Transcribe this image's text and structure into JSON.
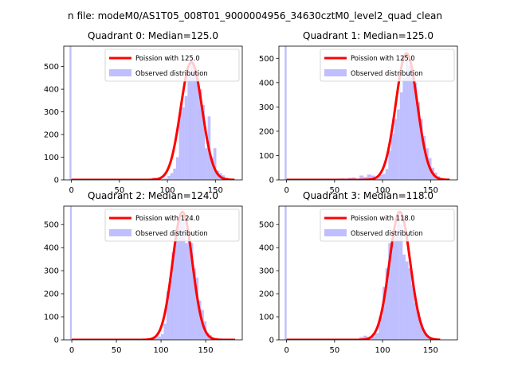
{
  "figure": {
    "suptitle": "n file: modeM0/AS1T05_008T01_9000004956_34630cztM0_level2_quad_clean"
  },
  "chart_data": [
    {
      "type": "histogram+line",
      "title": "Quadrant 0: Median=125.0",
      "median": 125.0,
      "xlim": [
        -8,
        178
      ],
      "ylim": [
        0,
        590
      ],
      "xticks": [
        0,
        50,
        100,
        150
      ],
      "yticks": [
        0,
        100,
        200,
        300,
        400,
        500
      ],
      "legend": {
        "position": "top-right",
        "entries": [
          "Poission with 125.0",
          "Observed distribution"
        ]
      },
      "series": [
        {
          "name": "Poission with 125.0",
          "kind": "line",
          "color": "#ff0000",
          "mean": 125.0,
          "peak": 520,
          "x_range": [
            0,
            170
          ]
        },
        {
          "name": "Observed distribution",
          "kind": "histogram",
          "color": "#8080ff",
          "bins": [
            [
              -2,
              0,
              590
            ],
            [
              0,
              4,
              2
            ],
            [
              4,
              8,
              1
            ],
            [
              8,
              12,
              1
            ],
            [
              12,
              16,
              1
            ],
            [
              16,
              20,
              1
            ],
            [
              20,
              24,
              1
            ],
            [
              24,
              28,
              1
            ],
            [
              28,
              32,
              1
            ],
            [
              32,
              36,
              1
            ],
            [
              36,
              40,
              1
            ],
            [
              40,
              44,
              1
            ],
            [
              44,
              48,
              1
            ],
            [
              48,
              52,
              1
            ],
            [
              52,
              56,
              1
            ],
            [
              56,
              60,
              1
            ],
            [
              60,
              64,
              1
            ],
            [
              64,
              68,
              1
            ],
            [
              68,
              72,
              1
            ],
            [
              72,
              76,
              1
            ],
            [
              76,
              80,
              2
            ],
            [
              80,
              84,
              3
            ],
            [
              84,
              88,
              10
            ],
            [
              88,
              92,
              5
            ],
            [
              92,
              96,
              4
            ],
            [
              96,
              100,
              6
            ],
            [
              100,
              103,
              18
            ],
            [
              103,
              106,
              30
            ],
            [
              106,
              109,
              50
            ],
            [
              109,
              112,
              100
            ],
            [
              112,
              115,
              300
            ],
            [
              115,
              118,
              320
            ],
            [
              118,
              121,
              370
            ],
            [
              121,
              124,
              470
            ],
            [
              124,
              127,
              520
            ],
            [
              127,
              130,
              480
            ],
            [
              130,
              133,
              470
            ],
            [
              133,
              136,
              400
            ],
            [
              136,
              139,
              330
            ],
            [
              139,
              142,
              140
            ],
            [
              142,
              145,
              280
            ],
            [
              145,
              148,
              100
            ],
            [
              148,
              151,
              140
            ],
            [
              151,
              154,
              40
            ],
            [
              154,
              157,
              30
            ],
            [
              157,
              160,
              20
            ],
            [
              160,
              163,
              10
            ],
            [
              163,
              166,
              5
            ],
            [
              166,
              170,
              2
            ]
          ]
        }
      ]
    },
    {
      "type": "histogram+line",
      "title": "Quadrant 1: Median=125.0",
      "median": 125.0,
      "xlim": [
        -8,
        178
      ],
      "ylim": [
        0,
        550
      ],
      "xticks": [
        0,
        50,
        100,
        150
      ],
      "yticks": [
        0,
        100,
        200,
        300,
        400,
        500
      ],
      "legend": {
        "position": "top-right",
        "entries": [
          "Poission with 125.0",
          "Observed distribution"
        ]
      },
      "series": [
        {
          "name": "Poission with 125.0",
          "kind": "line",
          "color": "#ff0000",
          "mean": 125.0,
          "peak": 520,
          "x_range": [
            0,
            170
          ]
        },
        {
          "name": "Observed distribution",
          "kind": "histogram",
          "color": "#8080ff",
          "bins": [
            [
              -2,
              0,
              550
            ],
            [
              0,
              4,
              2
            ],
            [
              4,
              8,
              1
            ],
            [
              8,
              12,
              1
            ],
            [
              12,
              16,
              1
            ],
            [
              16,
              20,
              1
            ],
            [
              20,
              24,
              1
            ],
            [
              24,
              28,
              1
            ],
            [
              28,
              32,
              1
            ],
            [
              32,
              36,
              2
            ],
            [
              36,
              40,
              4
            ],
            [
              40,
              44,
              5
            ],
            [
              44,
              48,
              3
            ],
            [
              48,
              52,
              3
            ],
            [
              52,
              56,
              5
            ],
            [
              56,
              60,
              6
            ],
            [
              60,
              64,
              4
            ],
            [
              64,
              68,
              8
            ],
            [
              68,
              72,
              10
            ],
            [
              72,
              76,
              5
            ],
            [
              76,
              80,
              18
            ],
            [
              80,
              84,
              12
            ],
            [
              84,
              88,
              22
            ],
            [
              88,
              92,
              18
            ],
            [
              92,
              96,
              12
            ],
            [
              96,
              100,
              20
            ],
            [
              100,
              103,
              25
            ],
            [
              103,
              106,
              45
            ],
            [
              106,
              109,
              120
            ],
            [
              109,
              112,
              190
            ],
            [
              112,
              115,
              250
            ],
            [
              115,
              118,
              290
            ],
            [
              118,
              121,
              360
            ],
            [
              121,
              124,
              420
            ],
            [
              124,
              127,
              490
            ],
            [
              127,
              130,
              470
            ],
            [
              130,
              133,
              460
            ],
            [
              133,
              136,
              400
            ],
            [
              136,
              139,
              320
            ],
            [
              139,
              142,
              250
            ],
            [
              142,
              145,
              180
            ],
            [
              145,
              148,
              130
            ],
            [
              148,
              151,
              90
            ],
            [
              151,
              154,
              50
            ],
            [
              154,
              157,
              30
            ],
            [
              157,
              160,
              15
            ],
            [
              160,
              163,
              8
            ],
            [
              163,
              166,
              4
            ],
            [
              166,
              170,
              2
            ]
          ]
        }
      ]
    },
    {
      "type": "histogram+line",
      "title": "Quadrant 2: Median=124.0",
      "median": 124.0,
      "xlim": [
        -9,
        191
      ],
      "ylim": [
        0,
        580
      ],
      "xticks": [
        0,
        50,
        100,
        150
      ],
      "yticks": [
        0,
        100,
        200,
        300,
        400,
        500
      ],
      "legend": {
        "position": "top-right",
        "entries": [
          "Poission with 124.0",
          "Observed distribution"
        ]
      },
      "series": [
        {
          "name": "Poission with 124.0",
          "kind": "line",
          "color": "#ff0000",
          "mean": 124.0,
          "peak": 555,
          "x_range": [
            0,
            183
          ]
        },
        {
          "name": "Observed distribution",
          "kind": "histogram",
          "color": "#8080ff",
          "bins": [
            [
              -2,
              0,
              580
            ],
            [
              0,
              4,
              2
            ],
            [
              4,
              8,
              1
            ],
            [
              8,
              12,
              1
            ],
            [
              12,
              16,
              1
            ],
            [
              16,
              20,
              1
            ],
            [
              20,
              24,
              1
            ],
            [
              24,
              28,
              1
            ],
            [
              28,
              32,
              1
            ],
            [
              32,
              36,
              1
            ],
            [
              36,
              40,
              1
            ],
            [
              40,
              44,
              1
            ],
            [
              44,
              48,
              1
            ],
            [
              48,
              52,
              1
            ],
            [
              52,
              56,
              1
            ],
            [
              56,
              60,
              1
            ],
            [
              60,
              64,
              1
            ],
            [
              64,
              68,
              1
            ],
            [
              68,
              72,
              1
            ],
            [
              72,
              76,
              1
            ],
            [
              76,
              80,
              1
            ],
            [
              80,
              84,
              2
            ],
            [
              84,
              88,
              3
            ],
            [
              88,
              92,
              5
            ],
            [
              92,
              96,
              8
            ],
            [
              96,
              100,
              15
            ],
            [
              100,
              103,
              25
            ],
            [
              103,
              106,
              70
            ],
            [
              106,
              109,
              210
            ],
            [
              109,
              112,
              260
            ],
            [
              112,
              115,
              380
            ],
            [
              115,
              118,
              430
            ],
            [
              118,
              121,
              510
            ],
            [
              121,
              124,
              540
            ],
            [
              124,
              127,
              510
            ],
            [
              127,
              130,
              420
            ],
            [
              130,
              133,
              470
            ],
            [
              133,
              136,
              420
            ],
            [
              136,
              139,
              310
            ],
            [
              139,
              142,
              270
            ],
            [
              142,
              145,
              170
            ],
            [
              145,
              148,
              130
            ],
            [
              148,
              151,
              80
            ],
            [
              151,
              154,
              30
            ],
            [
              154,
              157,
              20
            ],
            [
              157,
              160,
              10
            ],
            [
              160,
              163,
              5
            ],
            [
              163,
              166,
              3
            ],
            [
              166,
              170,
              2
            ],
            [
              170,
              183,
              1
            ]
          ]
        }
      ]
    },
    {
      "type": "histogram+line",
      "title": "Quadrant 3: Median=118.0",
      "median": 118.0,
      "xlim": [
        -8,
        178
      ],
      "ylim": [
        0,
        580
      ],
      "xticks": [
        0,
        50,
        100,
        150
      ],
      "yticks": [
        0,
        100,
        200,
        300,
        400,
        500
      ],
      "legend": {
        "position": "top-right",
        "entries": [
          "Poission with 118.0",
          "Observed distribution"
        ]
      },
      "series": [
        {
          "name": "Poission with 118.0",
          "kind": "line",
          "color": "#ff0000",
          "mean": 118.0,
          "peak": 555,
          "x_range": [
            0,
            160
          ]
        },
        {
          "name": "Observed distribution",
          "kind": "histogram",
          "color": "#8080ff",
          "bins": [
            [
              -2,
              0,
              580
            ],
            [
              0,
              4,
              2
            ],
            [
              4,
              8,
              1
            ],
            [
              8,
              12,
              1
            ],
            [
              12,
              16,
              1
            ],
            [
              16,
              20,
              1
            ],
            [
              20,
              24,
              1
            ],
            [
              24,
              28,
              1
            ],
            [
              28,
              32,
              1
            ],
            [
              32,
              36,
              1
            ],
            [
              36,
              40,
              1
            ],
            [
              40,
              44,
              1
            ],
            [
              44,
              48,
              1
            ],
            [
              48,
              52,
              1
            ],
            [
              52,
              56,
              1
            ],
            [
              56,
              60,
              1
            ],
            [
              60,
              64,
              1
            ],
            [
              64,
              68,
              1
            ],
            [
              68,
              72,
              2
            ],
            [
              72,
              76,
              3
            ],
            [
              76,
              80,
              12
            ],
            [
              80,
              84,
              18
            ],
            [
              84,
              88,
              10
            ],
            [
              88,
              92,
              15
            ],
            [
              92,
              96,
              30
            ],
            [
              96,
              100,
              100
            ],
            [
              100,
              103,
              230
            ],
            [
              103,
              106,
              310
            ],
            [
              106,
              109,
              420
            ],
            [
              109,
              112,
              420
            ],
            [
              112,
              115,
              450
            ],
            [
              115,
              118,
              560
            ],
            [
              118,
              121,
              500
            ],
            [
              121,
              124,
              370
            ],
            [
              124,
              127,
              340
            ],
            [
              127,
              130,
              310
            ],
            [
              130,
              133,
              240
            ],
            [
              133,
              136,
              160
            ],
            [
              136,
              139,
              120
            ],
            [
              139,
              142,
              70
            ],
            [
              142,
              145,
              30
            ],
            [
              145,
              148,
              20
            ],
            [
              148,
              151,
              10
            ],
            [
              151,
              154,
              5
            ],
            [
              154,
              157,
              3
            ],
            [
              157,
              160,
              2
            ]
          ]
        }
      ]
    }
  ]
}
